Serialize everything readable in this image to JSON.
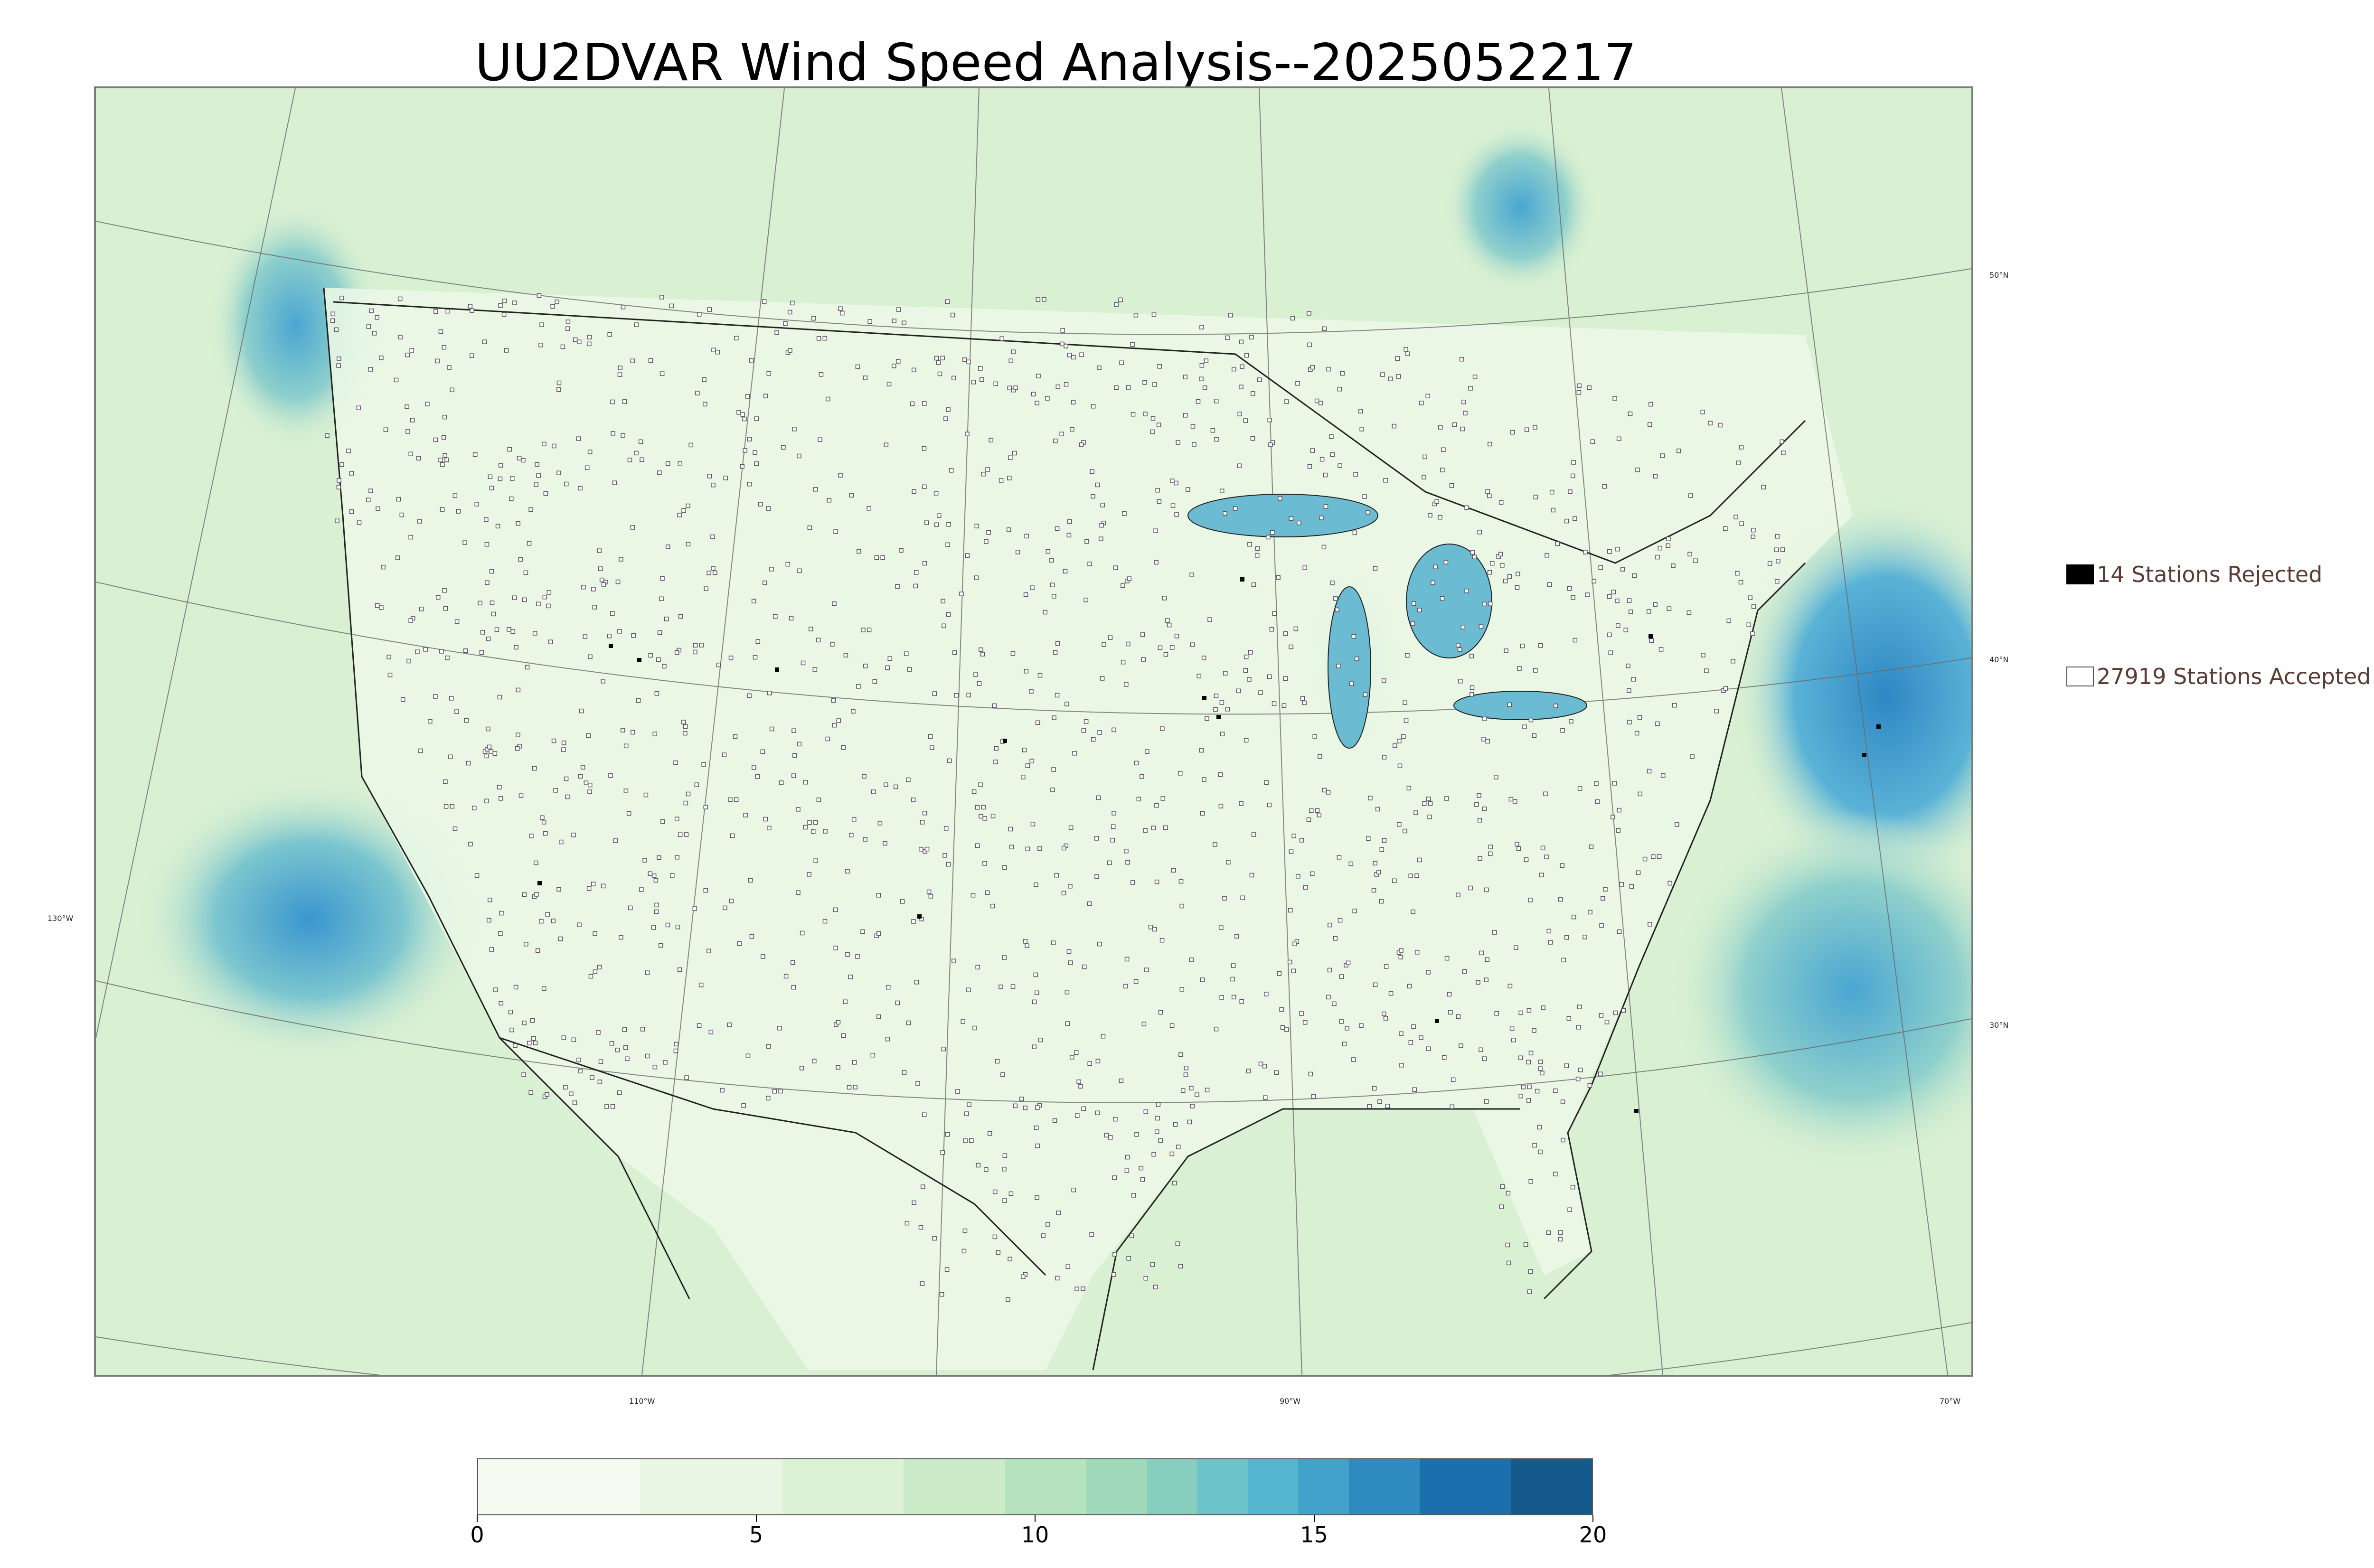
{
  "title": "UU2DVAR Wind Speed Analysis--2025052217",
  "legend": {
    "rejected_label": "14 Stations Rejected",
    "accepted_label": "27919 Stations Accepted"
  },
  "lat_labels": [
    "50°N",
    "40°N",
    "30°N"
  ],
  "lon_labels": [
    "130°W",
    "110°W",
    "90°W",
    "70°W"
  ],
  "colorbar": {
    "ticks": [
      "0",
      "5",
      "10",
      "15",
      "20"
    ],
    "min": 0,
    "max": 20,
    "colors": [
      "#f5fbf1",
      "#e9f6e3",
      "#dcf1d6",
      "#cbeac7",
      "#b6e2bd",
      "#9fd9b9",
      "#86cfbe",
      "#6cc4c8",
      "#56b6d0",
      "#43a2cb",
      "#2f8bbf",
      "#1c6fad",
      "#155a8c"
    ]
  },
  "colors": {
    "land_light": "#eef8ea",
    "land_mid": "#d6efd0",
    "ocean_high": "#3d9bd0",
    "station_accepted": "#ffffff",
    "station_rejected": "#000000",
    "legend_text": "#5a3a32"
  }
}
